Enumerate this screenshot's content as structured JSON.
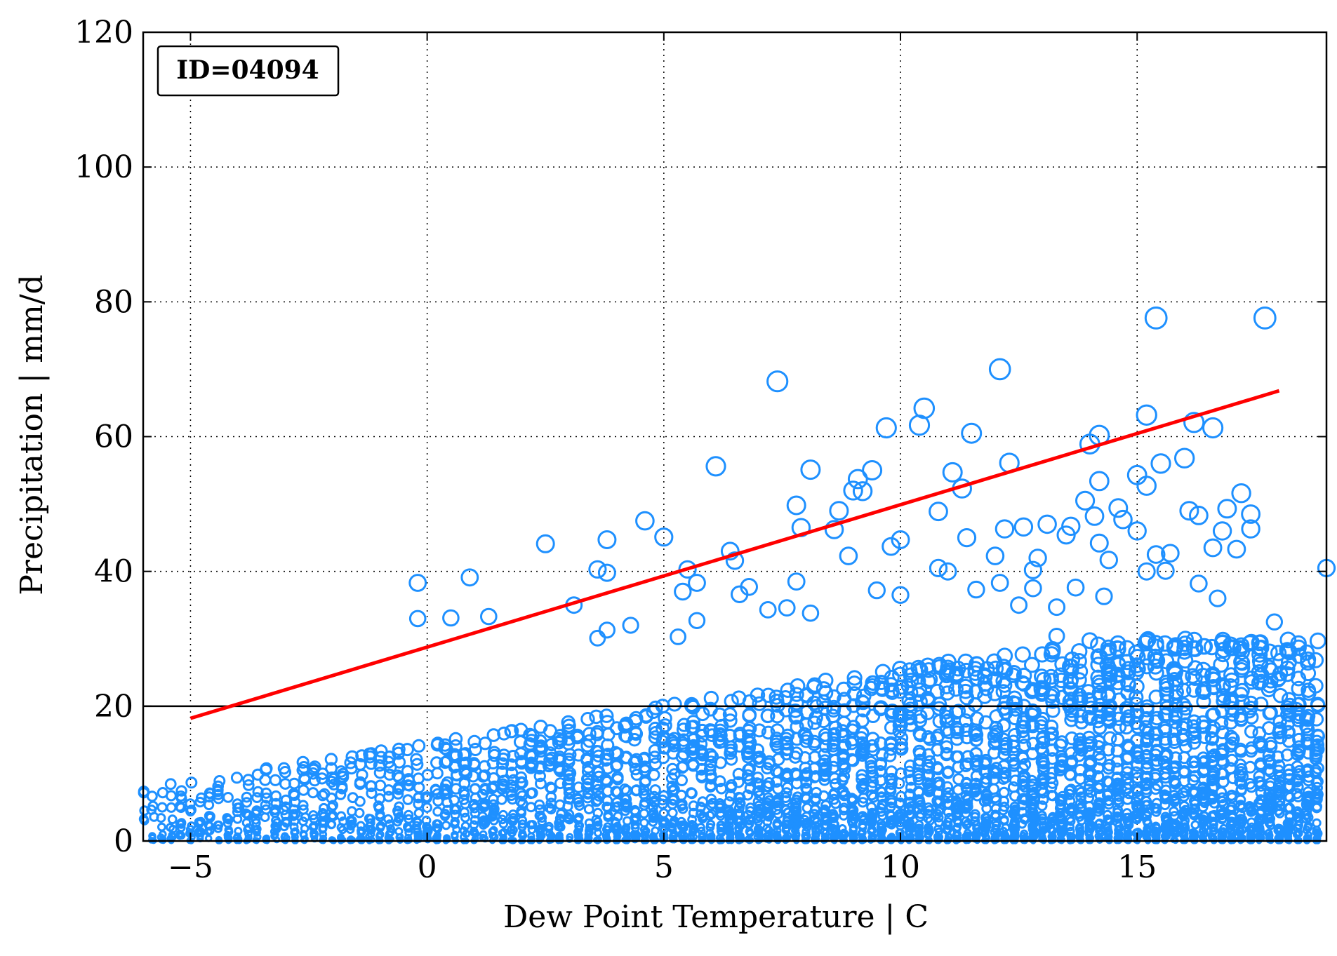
{
  "chart_data": {
    "type": "scatter",
    "title": "",
    "xlabel": "Dew Point Temperature | C",
    "ylabel": "Precipitation | mm/d",
    "xlim": [
      -6,
      19
    ],
    "ylim": [
      0,
      120
    ],
    "xticks": [
      -5,
      0,
      5,
      10,
      15
    ],
    "xtick_labels": [
      "−5",
      "0",
      "5",
      "10",
      "15"
    ],
    "yticks": [
      0,
      20,
      40,
      60,
      80,
      100,
      120
    ],
    "ytick_labels": [
      "0",
      "20",
      "40",
      "60",
      "80",
      "100",
      "120"
    ],
    "grid": true,
    "annotation": "ID=04094",
    "marker_color": "#1e90ff",
    "trend_color": "#ff0000",
    "threshold": 20,
    "trend_line": {
      "x": [
        -5,
        18
      ],
      "y": [
        18.2,
        66.8
      ]
    },
    "outliers": [
      [
        -0.2,
        38.3
      ],
      [
        -0.2,
        33.0
      ],
      [
        0.5,
        33.1
      ],
      [
        0.9,
        39.1
      ],
      [
        1.3,
        33.3
      ],
      [
        2.5,
        44.1
      ],
      [
        3.1,
        35.0
      ],
      [
        3.6,
        40.3
      ],
      [
        3.8,
        44.7
      ],
      [
        3.8,
        39.8
      ],
      [
        3.6,
        30.1
      ],
      [
        3.8,
        31.3
      ],
      [
        4.3,
        32.0
      ],
      [
        4.6,
        47.5
      ],
      [
        5.0,
        45.1
      ],
      [
        5.3,
        30.3
      ],
      [
        5.5,
        40.3
      ],
      [
        5.4,
        37.0
      ],
      [
        5.7,
        38.3
      ],
      [
        5.7,
        32.7
      ],
      [
        6.1,
        55.6
      ],
      [
        6.4,
        43.0
      ],
      [
        6.5,
        41.6
      ],
      [
        6.6,
        36.6
      ],
      [
        6.8,
        37.7
      ],
      [
        7.2,
        34.3
      ],
      [
        7.4,
        68.2
      ],
      [
        7.6,
        34.6
      ],
      [
        7.8,
        38.5
      ],
      [
        7.8,
        49.8
      ],
      [
        7.9,
        46.5
      ],
      [
        8.1,
        55.1
      ],
      [
        8.1,
        33.8
      ],
      [
        8.6,
        46.2
      ],
      [
        8.7,
        49.0
      ],
      [
        8.9,
        42.3
      ],
      [
        9.0,
        52.0
      ],
      [
        9.1,
        53.7
      ],
      [
        9.2,
        51.9
      ],
      [
        9.4,
        55.0
      ],
      [
        9.5,
        37.2
      ],
      [
        9.7,
        61.3
      ],
      [
        9.8,
        43.7
      ],
      [
        10.0,
        44.7
      ],
      [
        10.0,
        36.5
      ],
      [
        10.4,
        61.7
      ],
      [
        10.5,
        64.2
      ],
      [
        10.8,
        48.9
      ],
      [
        10.8,
        40.5
      ],
      [
        11.0,
        40.0
      ],
      [
        11.1,
        54.7
      ],
      [
        11.4,
        45.0
      ],
      [
        11.3,
        52.3
      ],
      [
        11.5,
        60.5
      ],
      [
        11.6,
        37.3
      ],
      [
        12.0,
        42.3
      ],
      [
        12.1,
        38.3
      ],
      [
        12.1,
        70.0
      ],
      [
        12.2,
        46.3
      ],
      [
        12.3,
        56.1
      ],
      [
        12.6,
        46.6
      ],
      [
        12.8,
        40.2
      ],
      [
        12.9,
        42.0
      ],
      [
        13.1,
        47.0
      ],
      [
        13.5,
        45.4
      ],
      [
        13.6,
        46.7
      ],
      [
        13.7,
        37.6
      ],
      [
        13.9,
        50.5
      ],
      [
        14.1,
        48.2
      ],
      [
        14.0,
        58.9
      ],
      [
        14.2,
        60.2
      ],
      [
        14.2,
        53.4
      ],
      [
        14.2,
        44.2
      ],
      [
        14.4,
        41.7
      ],
      [
        14.6,
        49.4
      ],
      [
        14.7,
        47.7
      ],
      [
        15.0,
        54.3
      ],
      [
        15.2,
        63.2
      ],
      [
        15.2,
        52.7
      ],
      [
        15.4,
        77.6
      ],
      [
        15.4,
        42.5
      ],
      [
        15.5,
        56.0
      ],
      [
        15.6,
        40.1
      ],
      [
        15.7,
        42.7
      ],
      [
        16.0,
        56.8
      ],
      [
        16.1,
        49.0
      ],
      [
        16.2,
        62.1
      ],
      [
        16.3,
        48.3
      ],
      [
        16.6,
        61.3
      ],
      [
        16.6,
        43.5
      ],
      [
        16.8,
        46.0
      ],
      [
        16.9,
        49.3
      ],
      [
        17.1,
        43.3
      ],
      [
        17.2,
        51.6
      ],
      [
        17.4,
        48.5
      ],
      [
        17.4,
        46.3
      ],
      [
        17.7,
        77.6
      ],
      [
        17.9,
        32.5
      ],
      [
        19.0,
        40.5
      ],
      [
        15.0,
        46.0
      ],
      [
        15.2,
        40.0
      ],
      [
        14.3,
        36.3
      ],
      [
        13.3,
        34.7
      ],
      [
        12.8,
        37.5
      ],
      [
        12.5,
        35.0
      ],
      [
        13.3,
        30.4
      ],
      [
        16.7,
        36.0
      ],
      [
        16.3,
        38.2
      ]
    ]
  }
}
